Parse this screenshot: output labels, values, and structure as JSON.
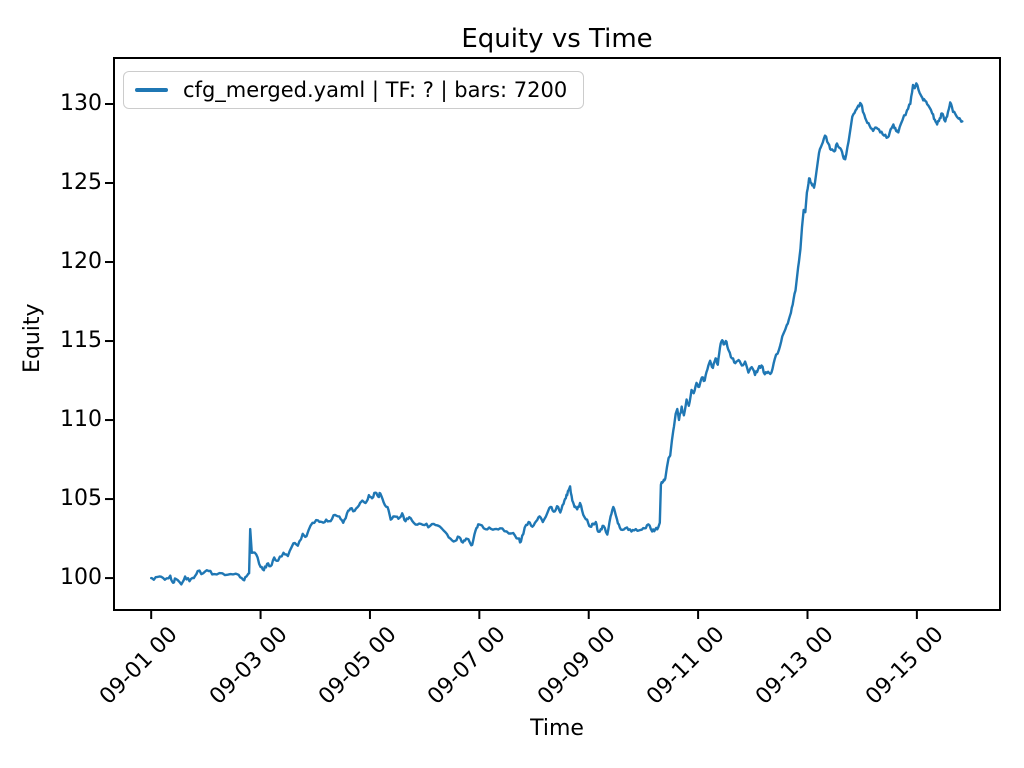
{
  "window": {
    "kind": "matplotlib-figure",
    "background": "#ffffff"
  },
  "chart_data": {
    "type": "line",
    "title": "Equity vs Time",
    "xlabel": "Time",
    "ylabel": "Equity",
    "grid": false,
    "legend_position": "upper left",
    "legend_frame_color": "#cccccc",
    "x_unit": "days since 09-01 00:00",
    "x_tick_days": [
      0,
      2,
      4,
      6,
      8,
      10,
      12,
      14
    ],
    "x_tick_labels": [
      "09-01 00",
      "09-03 00",
      "09-05 00",
      "09-07 00",
      "09-09 00",
      "09-11 00",
      "09-13 00",
      "09-15 00"
    ],
    "y_ticks": [
      100,
      105,
      110,
      115,
      120,
      125,
      130
    ],
    "xlim_days": [
      -0.68,
      15.52
    ],
    "ylim": [
      97.98,
      132.91
    ],
    "series": [
      {
        "name": "cfg_merged.yaml | TF: ? | bars: 7200",
        "color": "#1f77b4",
        "points": [
          [
            0.0,
            100.0
          ],
          [
            0.05,
            99.9
          ],
          [
            0.15,
            100.1
          ],
          [
            0.25,
            99.9
          ],
          [
            0.35,
            100.15
          ],
          [
            0.4,
            99.7
          ],
          [
            0.45,
            99.95
          ],
          [
            0.55,
            99.6
          ],
          [
            0.62,
            100.1
          ],
          [
            0.7,
            99.8
          ],
          [
            0.78,
            100.0
          ],
          [
            0.85,
            100.45
          ],
          [
            0.95,
            100.3
          ],
          [
            1.05,
            100.45
          ],
          [
            1.15,
            100.25
          ],
          [
            1.3,
            100.3
          ],
          [
            1.45,
            100.25
          ],
          [
            1.6,
            100.2
          ],
          [
            1.68,
            99.9
          ],
          [
            1.74,
            100.1
          ],
          [
            1.79,
            100.3
          ],
          [
            1.81,
            103.1
          ],
          [
            1.84,
            101.6
          ],
          [
            1.92,
            101.5
          ],
          [
            2.0,
            100.7
          ],
          [
            2.06,
            100.5
          ],
          [
            2.12,
            100.9
          ],
          [
            2.18,
            100.75
          ],
          [
            2.25,
            101.3
          ],
          [
            2.32,
            101.1
          ],
          [
            2.42,
            101.6
          ],
          [
            2.5,
            101.4
          ],
          [
            2.6,
            102.2
          ],
          [
            2.68,
            102.05
          ],
          [
            2.77,
            102.8
          ],
          [
            2.84,
            102.65
          ],
          [
            2.95,
            103.5
          ],
          [
            3.05,
            103.65
          ],
          [
            3.12,
            103.55
          ],
          [
            3.2,
            103.7
          ],
          [
            3.28,
            103.6
          ],
          [
            3.36,
            104.0
          ],
          [
            3.44,
            103.9
          ],
          [
            3.51,
            103.5
          ],
          [
            3.58,
            104.1
          ],
          [
            3.64,
            104.4
          ],
          [
            3.72,
            104.25
          ],
          [
            3.8,
            104.6
          ],
          [
            3.86,
            104.9
          ],
          [
            3.92,
            104.75
          ],
          [
            3.98,
            105.25
          ],
          [
            4.04,
            105.05
          ],
          [
            4.1,
            105.4
          ],
          [
            4.15,
            105.15
          ],
          [
            4.19,
            105.35
          ],
          [
            4.25,
            104.8
          ],
          [
            4.32,
            104.5
          ],
          [
            4.38,
            103.7
          ],
          [
            4.45,
            103.9
          ],
          [
            4.52,
            103.75
          ],
          [
            4.59,
            104.1
          ],
          [
            4.65,
            103.6
          ],
          [
            4.72,
            103.85
          ],
          [
            4.8,
            103.5
          ],
          [
            4.9,
            103.45
          ],
          [
            5.0,
            103.35
          ],
          [
            5.1,
            103.3
          ],
          [
            5.2,
            103.35
          ],
          [
            5.28,
            103.25
          ],
          [
            5.38,
            102.9
          ],
          [
            5.47,
            102.5
          ],
          [
            5.56,
            102.35
          ],
          [
            5.63,
            102.6
          ],
          [
            5.7,
            102.25
          ],
          [
            5.76,
            102.5
          ],
          [
            5.82,
            102.3
          ],
          [
            5.87,
            102.1
          ],
          [
            5.93,
            103.0
          ],
          [
            5.98,
            103.4
          ],
          [
            6.08,
            103.15
          ],
          [
            6.18,
            103.2
          ],
          [
            6.28,
            103.1
          ],
          [
            6.38,
            103.15
          ],
          [
            6.5,
            102.95
          ],
          [
            6.62,
            102.85
          ],
          [
            6.71,
            102.5
          ],
          [
            6.76,
            102.3
          ],
          [
            6.83,
            103.2
          ],
          [
            6.9,
            103.55
          ],
          [
            6.97,
            103.25
          ],
          [
            7.04,
            103.6
          ],
          [
            7.1,
            103.9
          ],
          [
            7.16,
            103.55
          ],
          [
            7.24,
            104.1
          ],
          [
            7.3,
            104.5
          ],
          [
            7.36,
            104.2
          ],
          [
            7.42,
            104.55
          ],
          [
            7.48,
            104.15
          ],
          [
            7.54,
            104.7
          ],
          [
            7.58,
            105.05
          ],
          [
            7.62,
            105.5
          ],
          [
            7.66,
            105.8
          ],
          [
            7.7,
            104.9
          ],
          [
            7.74,
            104.5
          ],
          [
            7.79,
            104.35
          ],
          [
            7.84,
            104.75
          ],
          [
            7.9,
            104.0
          ],
          [
            7.97,
            103.7
          ],
          [
            8.03,
            103.25
          ],
          [
            8.08,
            103.45
          ],
          [
            8.13,
            103.55
          ],
          [
            8.17,
            102.95
          ],
          [
            8.22,
            103.1
          ],
          [
            8.27,
            103.3
          ],
          [
            8.34,
            102.75
          ],
          [
            8.4,
            103.9
          ],
          [
            8.45,
            104.5
          ],
          [
            8.5,
            103.9
          ],
          [
            8.55,
            103.4
          ],
          [
            8.61,
            103.05
          ],
          [
            8.7,
            103.2
          ],
          [
            8.78,
            102.95
          ],
          [
            8.86,
            103.1
          ],
          [
            8.95,
            103.05
          ],
          [
            9.02,
            103.15
          ],
          [
            9.09,
            103.4
          ],
          [
            9.16,
            102.95
          ],
          [
            9.22,
            103.1
          ],
          [
            9.27,
            103.2
          ],
          [
            9.3,
            103.5
          ],
          [
            9.32,
            105.9
          ],
          [
            9.36,
            106.1
          ],
          [
            9.4,
            106.3
          ],
          [
            9.43,
            107.0
          ],
          [
            9.46,
            107.6
          ],
          [
            9.49,
            107.75
          ],
          [
            9.52,
            108.7
          ],
          [
            9.56,
            109.6
          ],
          [
            9.59,
            110.4
          ],
          [
            9.62,
            110.7
          ],
          [
            9.65,
            110.0
          ],
          [
            9.7,
            110.85
          ],
          [
            9.74,
            110.3
          ],
          [
            9.79,
            111.3
          ],
          [
            9.83,
            110.9
          ],
          [
            9.88,
            111.9
          ],
          [
            9.92,
            111.7
          ],
          [
            9.97,
            112.35
          ],
          [
            10.02,
            112.1
          ],
          [
            10.07,
            112.7
          ],
          [
            10.12,
            112.5
          ],
          [
            10.17,
            113.2
          ],
          [
            10.22,
            113.75
          ],
          [
            10.27,
            113.3
          ],
          [
            10.32,
            113.9
          ],
          [
            10.36,
            113.5
          ],
          [
            10.4,
            114.6
          ],
          [
            10.44,
            115.05
          ],
          [
            10.48,
            114.8
          ],
          [
            10.52,
            114.95
          ],
          [
            10.56,
            114.4
          ],
          [
            10.62,
            113.9
          ],
          [
            10.68,
            113.6
          ],
          [
            10.74,
            113.8
          ],
          [
            10.8,
            113.45
          ],
          [
            10.86,
            113.7
          ],
          [
            10.92,
            113.0
          ],
          [
            10.98,
            113.35
          ],
          [
            11.04,
            112.85
          ],
          [
            11.1,
            113.25
          ],
          [
            11.16,
            113.45
          ],
          [
            11.22,
            112.9
          ],
          [
            11.28,
            113.05
          ],
          [
            11.34,
            113.0
          ],
          [
            11.4,
            113.85
          ],
          [
            11.48,
            114.45
          ],
          [
            11.54,
            115.3
          ],
          [
            11.62,
            116.0
          ],
          [
            11.68,
            116.6
          ],
          [
            11.73,
            117.3
          ],
          [
            11.78,
            118.2
          ],
          [
            11.83,
            119.7
          ],
          [
            11.87,
            120.8
          ],
          [
            11.9,
            122.2
          ],
          [
            11.93,
            123.3
          ],
          [
            11.96,
            123.15
          ],
          [
            11.99,
            124.4
          ],
          [
            12.03,
            125.3
          ],
          [
            12.07,
            125.0
          ],
          [
            12.12,
            124.7
          ],
          [
            12.16,
            125.6
          ],
          [
            12.21,
            126.9
          ],
          [
            12.26,
            127.4
          ],
          [
            12.32,
            128.0
          ],
          [
            12.38,
            127.5
          ],
          [
            12.43,
            127.1
          ],
          [
            12.49,
            127.0
          ],
          [
            12.54,
            127.5
          ],
          [
            12.6,
            127.2
          ],
          [
            12.65,
            126.7
          ],
          [
            12.69,
            126.5
          ],
          [
            12.75,
            127.6
          ],
          [
            12.82,
            129.2
          ],
          [
            12.88,
            129.6
          ],
          [
            12.93,
            129.9
          ],
          [
            12.98,
            130.0
          ],
          [
            13.03,
            129.4
          ],
          [
            13.07,
            129.0
          ],
          [
            13.14,
            128.6
          ],
          [
            13.2,
            128.3
          ],
          [
            13.26,
            128.5
          ],
          [
            13.33,
            128.2
          ],
          [
            13.4,
            128.0
          ],
          [
            13.47,
            127.9
          ],
          [
            13.52,
            128.4
          ],
          [
            13.57,
            128.7
          ],
          [
            13.62,
            128.3
          ],
          [
            13.66,
            128.2
          ],
          [
            13.74,
            129.0
          ],
          [
            13.82,
            129.6
          ],
          [
            13.88,
            130.0
          ],
          [
            13.93,
            131.2
          ],
          [
            13.96,
            131.0
          ],
          [
            13.99,
            131.3
          ],
          [
            14.05,
            130.7
          ],
          [
            14.1,
            130.4
          ],
          [
            14.15,
            130.2
          ],
          [
            14.21,
            129.9
          ],
          [
            14.28,
            129.4
          ],
          [
            14.33,
            129.0
          ],
          [
            14.37,
            128.7
          ],
          [
            14.42,
            129.1
          ],
          [
            14.46,
            129.4
          ],
          [
            14.5,
            129.0
          ],
          [
            14.52,
            128.9
          ],
          [
            14.57,
            129.5
          ],
          [
            14.61,
            130.1
          ],
          [
            14.66,
            129.5
          ],
          [
            14.73,
            129.2
          ],
          [
            14.78,
            129.1
          ],
          [
            14.83,
            128.9
          ]
        ]
      }
    ]
  }
}
